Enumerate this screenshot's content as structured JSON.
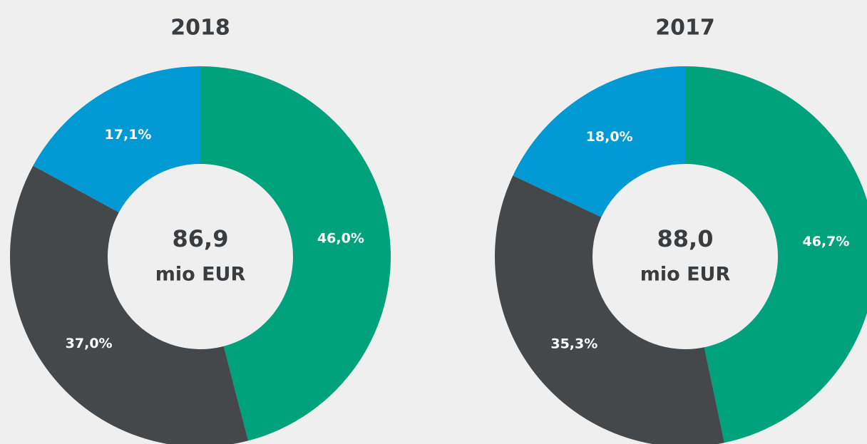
{
  "chart_data": [
    {
      "type": "pie",
      "title": "2018",
      "values": [
        46.0,
        37.0,
        17.1
      ],
      "value_labels": [
        "46,0%",
        "37,0%",
        "17,1%"
      ],
      "colors": [
        "#00a27c",
        "#45484b",
        "#0099d4"
      ],
      "center_text": [
        "86,9",
        "mio EUR"
      ]
    },
    {
      "type": "pie",
      "title": "2017",
      "values": [
        46.7,
        35.3,
        18.0
      ],
      "value_labels": [
        "46,7%",
        "35,3%",
        "18,0%"
      ],
      "colors": [
        "#00a27c",
        "#45484b",
        "#0099d4"
      ],
      "center_text": [
        "88,0",
        "mio EUR"
      ]
    }
  ]
}
